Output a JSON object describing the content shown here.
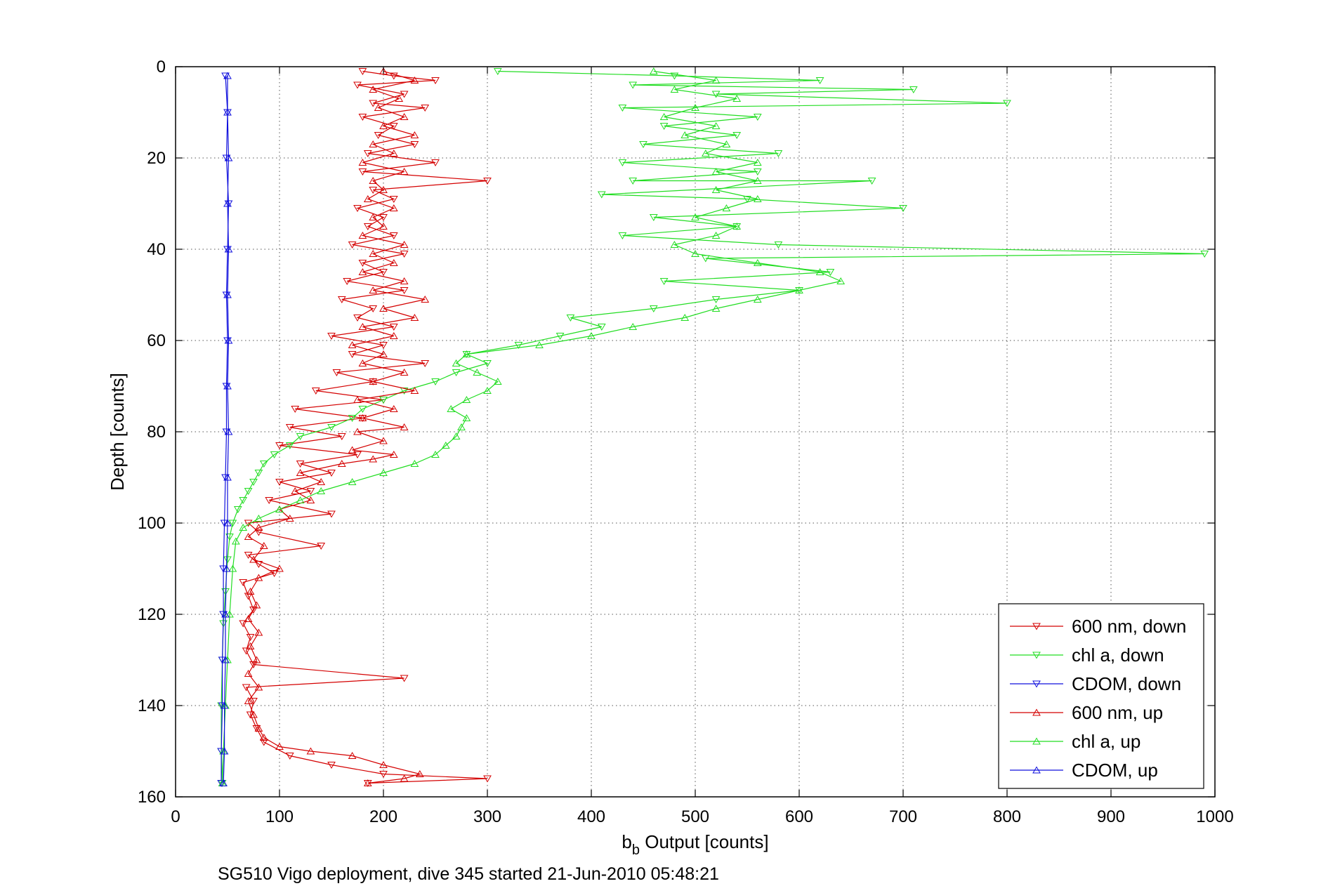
{
  "chart_data": {
    "type": "line",
    "title": "",
    "xlabel_main": "b",
    "xlabel_sub": "b",
    "xlabel_rest": " Output [counts]",
    "ylabel": "Depth [counts]",
    "xlim": [
      0,
      1000
    ],
    "ylim": [
      0,
      160
    ],
    "y_reversed": true,
    "grid": true,
    "legend_position": "bottom-right",
    "x_ticks": [
      "0",
      "100",
      "200",
      "300",
      "400",
      "500",
      "600",
      "700",
      "800",
      "900",
      "1000"
    ],
    "y_ticks": [
      "0",
      "20",
      "40",
      "60",
      "80",
      "100",
      "120",
      "140",
      "160"
    ],
    "footer_text": "SG510 Vigo deployment, dive 345 started 21-Jun-2010 05:48:21",
    "series": [
      {
        "name": "600 nm, down",
        "color": "#d40000",
        "marker": "triangle-down",
        "points": [
          [
            180,
            1
          ],
          [
            210,
            2
          ],
          [
            250,
            3
          ],
          [
            175,
            4
          ],
          [
            220,
            6
          ],
          [
            190,
            8
          ],
          [
            240,
            9
          ],
          [
            180,
            11
          ],
          [
            210,
            13
          ],
          [
            195,
            15
          ],
          [
            230,
            17
          ],
          [
            185,
            19
          ],
          [
            250,
            21
          ],
          [
            180,
            23
          ],
          [
            300,
            25
          ],
          [
            190,
            27
          ],
          [
            210,
            29
          ],
          [
            175,
            31
          ],
          [
            200,
            33
          ],
          [
            185,
            35
          ],
          [
            210,
            37
          ],
          [
            170,
            39
          ],
          [
            220,
            41
          ],
          [
            180,
            43
          ],
          [
            200,
            45
          ],
          [
            165,
            47
          ],
          [
            220,
            49
          ],
          [
            160,
            51
          ],
          [
            190,
            53
          ],
          [
            175,
            55
          ],
          [
            210,
            57
          ],
          [
            150,
            59
          ],
          [
            200,
            61
          ],
          [
            170,
            63
          ],
          [
            240,
            65
          ],
          [
            155,
            67
          ],
          [
            190,
            69
          ],
          [
            135,
            71
          ],
          [
            200,
            73
          ],
          [
            115,
            75
          ],
          [
            180,
            77
          ],
          [
            110,
            79
          ],
          [
            160,
            81
          ],
          [
            100,
            83
          ],
          [
            175,
            85
          ],
          [
            120,
            87
          ],
          [
            150,
            89
          ],
          [
            100,
            91
          ],
          [
            130,
            93
          ],
          [
            90,
            95
          ],
          [
            150,
            98
          ],
          [
            70,
            100
          ],
          [
            80,
            102
          ],
          [
            140,
            105
          ],
          [
            70,
            107
          ],
          [
            80,
            109
          ],
          [
            95,
            111
          ],
          [
            65,
            113
          ],
          [
            70,
            116
          ],
          [
            75,
            119
          ],
          [
            65,
            122
          ],
          [
            72,
            125
          ],
          [
            68,
            128
          ],
          [
            75,
            131
          ],
          [
            220,
            134
          ],
          [
            68,
            136
          ],
          [
            75,
            139
          ],
          [
            72,
            142
          ],
          [
            78,
            145
          ],
          [
            85,
            148
          ],
          [
            110,
            151
          ],
          [
            150,
            153
          ],
          [
            200,
            155
          ],
          [
            300,
            156
          ],
          [
            185,
            157
          ]
        ]
      },
      {
        "name": "chl a, down",
        "color": "#22dd22",
        "marker": "triangle-down",
        "points": [
          [
            310,
            1
          ],
          [
            480,
            2
          ],
          [
            620,
            3
          ],
          [
            440,
            4
          ],
          [
            710,
            5
          ],
          [
            520,
            6
          ],
          [
            800,
            8
          ],
          [
            430,
            9
          ],
          [
            560,
            11
          ],
          [
            470,
            13
          ],
          [
            540,
            15
          ],
          [
            450,
            17
          ],
          [
            580,
            19
          ],
          [
            430,
            21
          ],
          [
            560,
            23
          ],
          [
            440,
            25
          ],
          [
            670,
            25
          ],
          [
            410,
            28
          ],
          [
            550,
            29
          ],
          [
            700,
            31
          ],
          [
            460,
            33
          ],
          [
            540,
            35
          ],
          [
            430,
            37
          ],
          [
            580,
            39
          ],
          [
            990,
            41
          ],
          [
            510,
            42
          ],
          [
            630,
            45
          ],
          [
            470,
            47
          ],
          [
            600,
            49
          ],
          [
            520,
            51
          ],
          [
            460,
            53
          ],
          [
            380,
            55
          ],
          [
            410,
            57
          ],
          [
            370,
            59
          ],
          [
            330,
            61
          ],
          [
            280,
            63
          ],
          [
            300,
            65
          ],
          [
            270,
            67
          ],
          [
            250,
            69
          ],
          [
            220,
            71
          ],
          [
            200,
            73
          ],
          [
            180,
            75
          ],
          [
            170,
            77
          ],
          [
            150,
            79
          ],
          [
            120,
            81
          ],
          [
            110,
            83
          ],
          [
            95,
            85
          ],
          [
            85,
            87
          ],
          [
            80,
            89
          ],
          [
            75,
            91
          ],
          [
            70,
            93
          ],
          [
            65,
            95
          ],
          [
            60,
            97
          ],
          [
            55,
            100
          ],
          [
            52,
            103
          ],
          [
            50,
            108
          ],
          [
            48,
            115
          ],
          [
            46,
            122
          ],
          [
            45,
            130
          ],
          [
            44,
            140
          ],
          [
            44,
            150
          ],
          [
            45,
            157
          ]
        ]
      },
      {
        "name": "CDOM, down",
        "color": "#1010dd",
        "marker": "triangle-down",
        "points": [
          [
            48,
            2
          ],
          [
            50,
            10
          ],
          [
            49,
            20
          ],
          [
            51,
            30
          ],
          [
            50,
            40
          ],
          [
            49,
            50
          ],
          [
            50,
            60
          ],
          [
            49,
            70
          ],
          [
            49,
            80
          ],
          [
            48,
            90
          ],
          [
            47,
            100
          ],
          [
            46,
            110
          ],
          [
            46,
            120
          ],
          [
            45,
            130
          ],
          [
            45,
            140
          ],
          [
            44,
            150
          ],
          [
            44,
            157
          ]
        ]
      },
      {
        "name": "600 nm, up",
        "color": "#d40000",
        "marker": "triangle-up",
        "points": [
          [
            185,
            157
          ],
          [
            220,
            156
          ],
          [
            235,
            155
          ],
          [
            200,
            153
          ],
          [
            170,
            151
          ],
          [
            130,
            150
          ],
          [
            100,
            149
          ],
          [
            85,
            147
          ],
          [
            80,
            145
          ],
          [
            75,
            142
          ],
          [
            70,
            139
          ],
          [
            80,
            136
          ],
          [
            70,
            133
          ],
          [
            78,
            130
          ],
          [
            72,
            127
          ],
          [
            80,
            124
          ],
          [
            70,
            121
          ],
          [
            78,
            118
          ],
          [
            72,
            115
          ],
          [
            80,
            112
          ],
          [
            100,
            110
          ],
          [
            75,
            108
          ],
          [
            85,
            105
          ],
          [
            70,
            103
          ],
          [
            80,
            101
          ],
          [
            110,
            99
          ],
          [
            100,
            97
          ],
          [
            130,
            95
          ],
          [
            115,
            93
          ],
          [
            140,
            91
          ],
          [
            120,
            89
          ],
          [
            160,
            87
          ],
          [
            190,
            86
          ],
          [
            210,
            85
          ],
          [
            170,
            84
          ],
          [
            200,
            82
          ],
          [
            175,
            80
          ],
          [
            220,
            79
          ],
          [
            180,
            77
          ],
          [
            210,
            75
          ],
          [
            175,
            73
          ],
          [
            230,
            71
          ],
          [
            190,
            69
          ],
          [
            220,
            67
          ],
          [
            180,
            65
          ],
          [
            200,
            63
          ],
          [
            170,
            61
          ],
          [
            210,
            59
          ],
          [
            180,
            57
          ],
          [
            230,
            55
          ],
          [
            200,
            53
          ],
          [
            240,
            51
          ],
          [
            190,
            49
          ],
          [
            220,
            47
          ],
          [
            180,
            45
          ],
          [
            210,
            43
          ],
          [
            190,
            41
          ],
          [
            220,
            39
          ],
          [
            180,
            37
          ],
          [
            200,
            35
          ],
          [
            190,
            33
          ],
          [
            210,
            31
          ],
          [
            185,
            29
          ],
          [
            200,
            27
          ],
          [
            190,
            25
          ],
          [
            220,
            23
          ],
          [
            180,
            21
          ],
          [
            210,
            19
          ],
          [
            190,
            17
          ],
          [
            230,
            15
          ],
          [
            200,
            13
          ],
          [
            220,
            11
          ],
          [
            195,
            9
          ],
          [
            215,
            7
          ],
          [
            190,
            5
          ],
          [
            230,
            3
          ],
          [
            200,
            1
          ]
        ]
      },
      {
        "name": "chl a, up",
        "color": "#22dd22",
        "marker": "triangle-up",
        "points": [
          [
            45,
            157
          ],
          [
            46,
            150
          ],
          [
            48,
            140
          ],
          [
            50,
            130
          ],
          [
            52,
            120
          ],
          [
            55,
            110
          ],
          [
            58,
            104
          ],
          [
            65,
            101
          ],
          [
            80,
            99
          ],
          [
            100,
            97
          ],
          [
            120,
            95
          ],
          [
            140,
            93
          ],
          [
            170,
            91
          ],
          [
            200,
            89
          ],
          [
            230,
            87
          ],
          [
            250,
            85
          ],
          [
            260,
            83
          ],
          [
            270,
            81
          ],
          [
            275,
            79
          ],
          [
            280,
            77
          ],
          [
            265,
            75
          ],
          [
            280,
            73
          ],
          [
            300,
            71
          ],
          [
            310,
            69
          ],
          [
            290,
            67
          ],
          [
            270,
            65
          ],
          [
            280,
            63
          ],
          [
            350,
            61
          ],
          [
            400,
            59
          ],
          [
            440,
            57
          ],
          [
            490,
            55
          ],
          [
            520,
            53
          ],
          [
            560,
            51
          ],
          [
            600,
            49
          ],
          [
            640,
            47
          ],
          [
            620,
            45
          ],
          [
            560,
            43
          ],
          [
            500,
            41
          ],
          [
            480,
            39
          ],
          [
            520,
            37
          ],
          [
            540,
            35
          ],
          [
            500,
            33
          ],
          [
            530,
            31
          ],
          [
            560,
            29
          ],
          [
            520,
            27
          ],
          [
            560,
            25
          ],
          [
            520,
            23
          ],
          [
            560,
            21
          ],
          [
            510,
            19
          ],
          [
            530,
            17
          ],
          [
            490,
            15
          ],
          [
            520,
            13
          ],
          [
            470,
            11
          ],
          [
            500,
            9
          ],
          [
            540,
            7
          ],
          [
            480,
            5
          ],
          [
            520,
            3
          ],
          [
            460,
            1
          ]
        ]
      },
      {
        "name": "CDOM, up",
        "color": "#1010dd",
        "marker": "triangle-up",
        "points": [
          [
            46,
            157
          ],
          [
            47,
            150
          ],
          [
            47,
            140
          ],
          [
            48,
            130
          ],
          [
            48,
            120
          ],
          [
            49,
            110
          ],
          [
            50,
            100
          ],
          [
            50,
            90
          ],
          [
            51,
            80
          ],
          [
            50,
            70
          ],
          [
            51,
            60
          ],
          [
            50,
            50
          ],
          [
            51,
            40
          ],
          [
            50,
            30
          ],
          [
            51,
            20
          ],
          [
            50,
            10
          ],
          [
            50,
            2
          ]
        ]
      }
    ]
  }
}
